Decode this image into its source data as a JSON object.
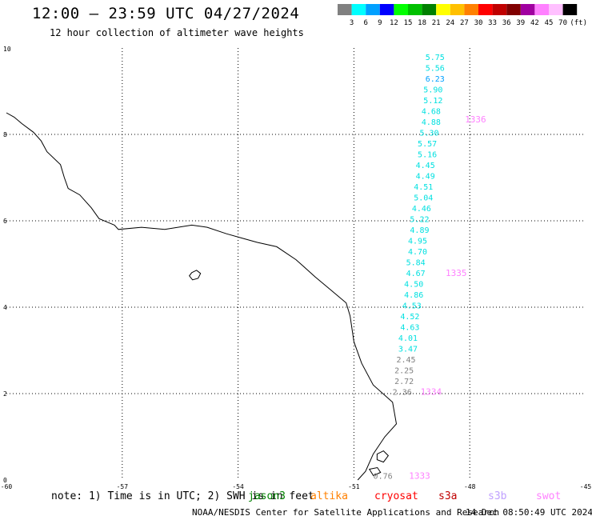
{
  "title": "12:00 — 23:59 UTC 04/27/2024",
  "subtitle": "12 hour collection of altimeter wave heights",
  "legend": {
    "unit": "(ft)",
    "bins": [
      {
        "label": "3",
        "color": "#808080"
      },
      {
        "label": "6",
        "color": "#00ffff"
      },
      {
        "label": "9",
        "color": "#00a0ff"
      },
      {
        "label": "12",
        "color": "#0000ff"
      },
      {
        "label": "15",
        "color": "#00ff00"
      },
      {
        "label": "18",
        "color": "#00c000"
      },
      {
        "label": "21",
        "color": "#008000"
      },
      {
        "label": "24",
        "color": "#ffff00"
      },
      {
        "label": "27",
        "color": "#ffc000"
      },
      {
        "label": "30",
        "color": "#ff8000"
      },
      {
        "label": "33",
        "color": "#ff0000"
      },
      {
        "label": "36",
        "color": "#c00000"
      },
      {
        "label": "39",
        "color": "#800000"
      },
      {
        "label": "42",
        "color": "#a000a0"
      },
      {
        "label": "45",
        "color": "#ff80ff"
      },
      {
        "label": "70",
        "color": "#ffc0ff"
      },
      {
        "label": "",
        "color": "#000000"
      }
    ]
  },
  "axes": {
    "x_ticks": [
      "-60",
      "-57",
      "-54",
      "-51",
      "-48",
      "-45"
    ],
    "y_ticks": [
      "0",
      "2",
      "4",
      "6",
      "8",
      "10"
    ],
    "x_range": [
      -60,
      -45
    ],
    "y_range": [
      0,
      10
    ]
  },
  "observations": [
    {
      "lon": -48.9,
      "lat": 9.8,
      "value": "5.75",
      "color": "#00e0e0"
    },
    {
      "lon": -48.9,
      "lat": 9.55,
      "value": "5.56",
      "color": "#00e0e0"
    },
    {
      "lon": -48.9,
      "lat": 9.3,
      "value": "6.23",
      "color": "#00a0ff"
    },
    {
      "lon": -48.95,
      "lat": 9.05,
      "value": "5.90",
      "color": "#00e0e0"
    },
    {
      "lon": -48.95,
      "lat": 8.8,
      "value": "5.12",
      "color": "#00e0e0"
    },
    {
      "lon": -49.0,
      "lat": 8.55,
      "value": "4.68",
      "color": "#00e0e0"
    },
    {
      "lon": -49.0,
      "lat": 8.3,
      "value": "4.88",
      "color": "#00e0e0"
    },
    {
      "lon": -49.05,
      "lat": 8.05,
      "value": "5.30",
      "color": "#00e0e0"
    },
    {
      "lon": -49.1,
      "lat": 7.8,
      "value": "5.57",
      "color": "#00e0e0"
    },
    {
      "lon": -49.1,
      "lat": 7.55,
      "value": "5.16",
      "color": "#00e0e0"
    },
    {
      "lon": -49.15,
      "lat": 7.3,
      "value": "4.45",
      "color": "#00e0e0"
    },
    {
      "lon": -49.15,
      "lat": 7.05,
      "value": "4.49",
      "color": "#00e0e0"
    },
    {
      "lon": -49.2,
      "lat": 6.8,
      "value": "4.51",
      "color": "#00e0e0"
    },
    {
      "lon": -49.2,
      "lat": 6.55,
      "value": "5.04",
      "color": "#00e0e0"
    },
    {
      "lon": -49.25,
      "lat": 6.3,
      "value": "4.46",
      "color": "#00e0e0"
    },
    {
      "lon": -49.3,
      "lat": 6.05,
      "value": "5.22",
      "color": "#00e0e0"
    },
    {
      "lon": -49.3,
      "lat": 5.8,
      "value": "4.89",
      "color": "#00e0e0"
    },
    {
      "lon": -49.35,
      "lat": 5.55,
      "value": "4.95",
      "color": "#00e0e0"
    },
    {
      "lon": -49.35,
      "lat": 5.3,
      "value": "4.70",
      "color": "#00e0e0"
    },
    {
      "lon": -49.4,
      "lat": 5.05,
      "value": "5.84",
      "color": "#00e0e0"
    },
    {
      "lon": -49.4,
      "lat": 4.8,
      "value": "4.67",
      "color": "#00e0e0"
    },
    {
      "lon": -49.45,
      "lat": 4.55,
      "value": "4.50",
      "color": "#00e0e0"
    },
    {
      "lon": -49.45,
      "lat": 4.3,
      "value": "4.86",
      "color": "#00e0e0"
    },
    {
      "lon": -49.5,
      "lat": 4.05,
      "value": "4.53",
      "color": "#00e0e0"
    },
    {
      "lon": -49.55,
      "lat": 3.8,
      "value": "4.52",
      "color": "#00e0e0"
    },
    {
      "lon": -49.55,
      "lat": 3.55,
      "value": "4.63",
      "color": "#00e0e0"
    },
    {
      "lon": -49.6,
      "lat": 3.3,
      "value": "4.01",
      "color": "#00e0e0"
    },
    {
      "lon": -49.6,
      "lat": 3.05,
      "value": "3.47",
      "color": "#00e0e0"
    },
    {
      "lon": -49.65,
      "lat": 2.8,
      "value": "2.45",
      "color": "#808080"
    },
    {
      "lon": -49.7,
      "lat": 2.55,
      "value": "2.25",
      "color": "#808080"
    },
    {
      "lon": -49.7,
      "lat": 2.3,
      "value": "2.72",
      "color": "#808080"
    },
    {
      "lon": -49.75,
      "lat": 2.05,
      "value": "2.36",
      "color": "#808080"
    },
    {
      "lon": -50.25,
      "lat": 0.1,
      "value": "0.76",
      "color": "#808080"
    }
  ],
  "pass_labels": [
    {
      "lon": -47.85,
      "lat": 8.35,
      "value": "1336",
      "color": "#ff80ff"
    },
    {
      "lon": -48.35,
      "lat": 4.8,
      "value": "1335",
      "color": "#ff80ff"
    },
    {
      "lon": -49.0,
      "lat": 2.05,
      "value": "1334",
      "color": "#ff80ff"
    },
    {
      "lon": -49.3,
      "lat": 0.1,
      "value": "1333",
      "color": "#ff80ff"
    }
  ],
  "note": "note: 1) Time is in UTC; 2) SWH is in feet",
  "satellites": [
    {
      "name": "jason3",
      "color": "#008000"
    },
    {
      "name": "altika",
      "color": "#ff8000"
    },
    {
      "name": "cryosat",
      "color": "#ff0000"
    },
    {
      "name": "s3a",
      "color": "#c00000"
    },
    {
      "name": "s3b",
      "color": "#c0a0ff"
    },
    {
      "name": "swot",
      "color": "#ff80ff"
    }
  ],
  "credit": "NOAA/NESDIS Center for Satellite Applications and Research",
  "timestamp": "14 Dec 08:50:49 UTC 2024"
}
